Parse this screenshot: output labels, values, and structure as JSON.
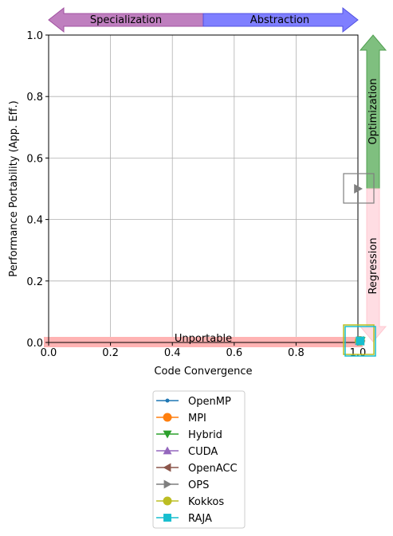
{
  "chart_data": {
    "type": "scatter",
    "xlabel": "Code Convergence",
    "ylabel": "Performance Portability (App. Eff.)",
    "xlim": [
      0.0,
      1.0
    ],
    "ylim": [
      0.0,
      1.0
    ],
    "xticks": [
      "0.0",
      "0.2",
      "0.4",
      "0.6",
      "0.8",
      "1.0"
    ],
    "yticks": [
      "0.0",
      "0.2",
      "0.4",
      "0.6",
      "0.8",
      "1.0"
    ],
    "grid": true,
    "legend_position": "bottom-center",
    "arrows": {
      "specialization": {
        "label": "Specialization",
        "color": "#bf7fbf"
      },
      "abstraction": {
        "label": "Abstraction",
        "color": "#7f7fff"
      },
      "optimization": {
        "label": "Optimization",
        "color": "#7fbf7f"
      },
      "regression": {
        "label": "Regression",
        "color": "#ffdde3"
      }
    },
    "unportable": {
      "label": "Unportable",
      "y": 0.0,
      "color": "#ffb3b3"
    },
    "series": [
      {
        "name": "OpenMP",
        "marker": "circle-small",
        "color": "#1f77b4",
        "points": [
          [
            1.0,
            0.0
          ]
        ]
      },
      {
        "name": "MPI",
        "marker": "circle",
        "color": "#ff7f0e",
        "points": [
          [
            1.0,
            0.0
          ]
        ]
      },
      {
        "name": "Hybrid",
        "marker": "triangle-down",
        "color": "#2ca02c",
        "points": [
          [
            1.0,
            0.0
          ]
        ]
      },
      {
        "name": "CUDA",
        "marker": "triangle-up",
        "color": "#9467bd",
        "points": [
          [
            1.0,
            0.0
          ]
        ]
      },
      {
        "name": "OpenACC",
        "marker": "triangle-left",
        "color": "#8c564b",
        "points": [
          [
            1.0,
            0.0
          ]
        ]
      },
      {
        "name": "OPS",
        "marker": "triangle-right",
        "color": "#7f7f7f",
        "points": [
          [
            1.0,
            0.0
          ],
          [
            1.0,
            0.5
          ]
        ]
      },
      {
        "name": "Kokkos",
        "marker": "circle",
        "color": "#bcbd22",
        "points": [
          [
            1.0,
            0.0
          ]
        ]
      },
      {
        "name": "RAJA",
        "marker": "square",
        "color": "#17becf",
        "points": [
          [
            1.0,
            0.0
          ]
        ]
      }
    ]
  }
}
